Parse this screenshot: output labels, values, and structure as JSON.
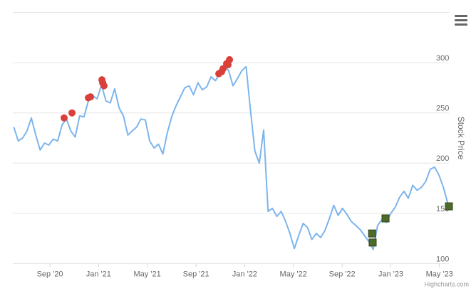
{
  "chart_data": {
    "type": "line",
    "y_title": "Stock Price",
    "credit": "Highcharts.com",
    "xlim": [
      2020.413,
      2023.398
    ],
    "ylim": [
      100,
      350
    ],
    "yticks": [
      100,
      150,
      200,
      250,
      300
    ],
    "xticks": [
      {
        "value": 2020.667,
        "label": "Sep '20"
      },
      {
        "value": 2021.0,
        "label": "Jan '21"
      },
      {
        "value": 2021.333,
        "label": "May '21"
      },
      {
        "value": 2021.667,
        "label": "Sep '21"
      },
      {
        "value": 2022.0,
        "label": "Jan '22"
      },
      {
        "value": 2022.333,
        "label": "May '22"
      },
      {
        "value": 2022.667,
        "label": "Sep '22"
      },
      {
        "value": 2023.0,
        "label": "Jan '23"
      },
      {
        "value": 2023.333,
        "label": "May '23"
      }
    ],
    "grid": true,
    "series": [
      {
        "type": "line",
        "color": "#7cb5ec",
        "x": [
          2020.42,
          2020.45,
          2020.48,
          2020.51,
          2020.54,
          2020.57,
          2020.6,
          2020.63,
          2020.66,
          2020.69,
          2020.72,
          2020.75,
          2020.78,
          2020.81,
          2020.84,
          2020.87,
          2020.9,
          2020.93,
          2020.96,
          2020.99,
          2021.02,
          2021.05,
          2021.08,
          2021.11,
          2021.14,
          2021.17,
          2021.2,
          2021.23,
          2021.26,
          2021.29,
          2021.32,
          2021.35,
          2021.38,
          2021.41,
          2021.44,
          2021.47,
          2021.5,
          2021.53,
          2021.56,
          2021.59,
          2021.62,
          2021.65,
          2021.68,
          2021.71,
          2021.74,
          2021.77,
          2021.8,
          2021.83,
          2021.86,
          2021.89,
          2021.92,
          2021.95,
          2021.98,
          2022.01,
          2022.04,
          2022.07,
          2022.1,
          2022.13,
          2022.16,
          2022.19,
          2022.22,
          2022.25,
          2022.28,
          2022.31,
          2022.34,
          2022.37,
          2022.4,
          2022.43,
          2022.46,
          2022.49,
          2022.52,
          2022.55,
          2022.58,
          2022.61,
          2022.64,
          2022.67,
          2022.7,
          2022.73,
          2022.76,
          2022.79,
          2022.82,
          2022.85,
          2022.88,
          2022.91,
          2022.94,
          2022.97,
          2023.0,
          2023.03,
          2023.06,
          2023.09,
          2023.12,
          2023.15,
          2023.18,
          2023.21,
          2023.24,
          2023.27,
          2023.3,
          2023.33,
          2023.36,
          2023.39
        ],
        "values": [
          236,
          222,
          225,
          232,
          245,
          228,
          213,
          220,
          218,
          224,
          222,
          238,
          244,
          232,
          226,
          247,
          246,
          262,
          267,
          264,
          278,
          262,
          260,
          274,
          255,
          247,
          228,
          232,
          236,
          244,
          243,
          222,
          215,
          219,
          209,
          230,
          246,
          257,
          266,
          275,
          277,
          268,
          280,
          273,
          276,
          286,
          282,
          290,
          298,
          292,
          277,
          284,
          292,
          296,
          252,
          212,
          200,
          233,
          152,
          155,
          147,
          152,
          142,
          130,
          115,
          128,
          140,
          136,
          124,
          130,
          126,
          133,
          145,
          158,
          148,
          155,
          149,
          142,
          138,
          134,
          128,
          122,
          114,
          138,
          144,
          141,
          150,
          156,
          166,
          172,
          165,
          178,
          173,
          176,
          182,
          194,
          196,
          188,
          176,
          160
        ]
      },
      {
        "type": "scatter",
        "marker": "circle",
        "color": "#d9403a",
        "x": [
          2020.764,
          2020.818,
          2020.93,
          2020.945,
          2021.023,
          2021.028,
          2021.037,
          2021.823,
          2021.842,
          2021.852,
          2021.876,
          2021.886,
          2021.896
        ],
        "values": [
          245,
          250,
          265,
          266,
          283,
          280,
          277,
          289,
          291,
          294,
          299,
          298,
          303
        ]
      },
      {
        "type": "scatter",
        "marker": "square",
        "color": "#4e6b2a",
        "x": [
          2022.872,
          2022.876,
          2022.964,
          2023.398
        ],
        "values": [
          130,
          121,
          145,
          157
        ]
      }
    ]
  }
}
